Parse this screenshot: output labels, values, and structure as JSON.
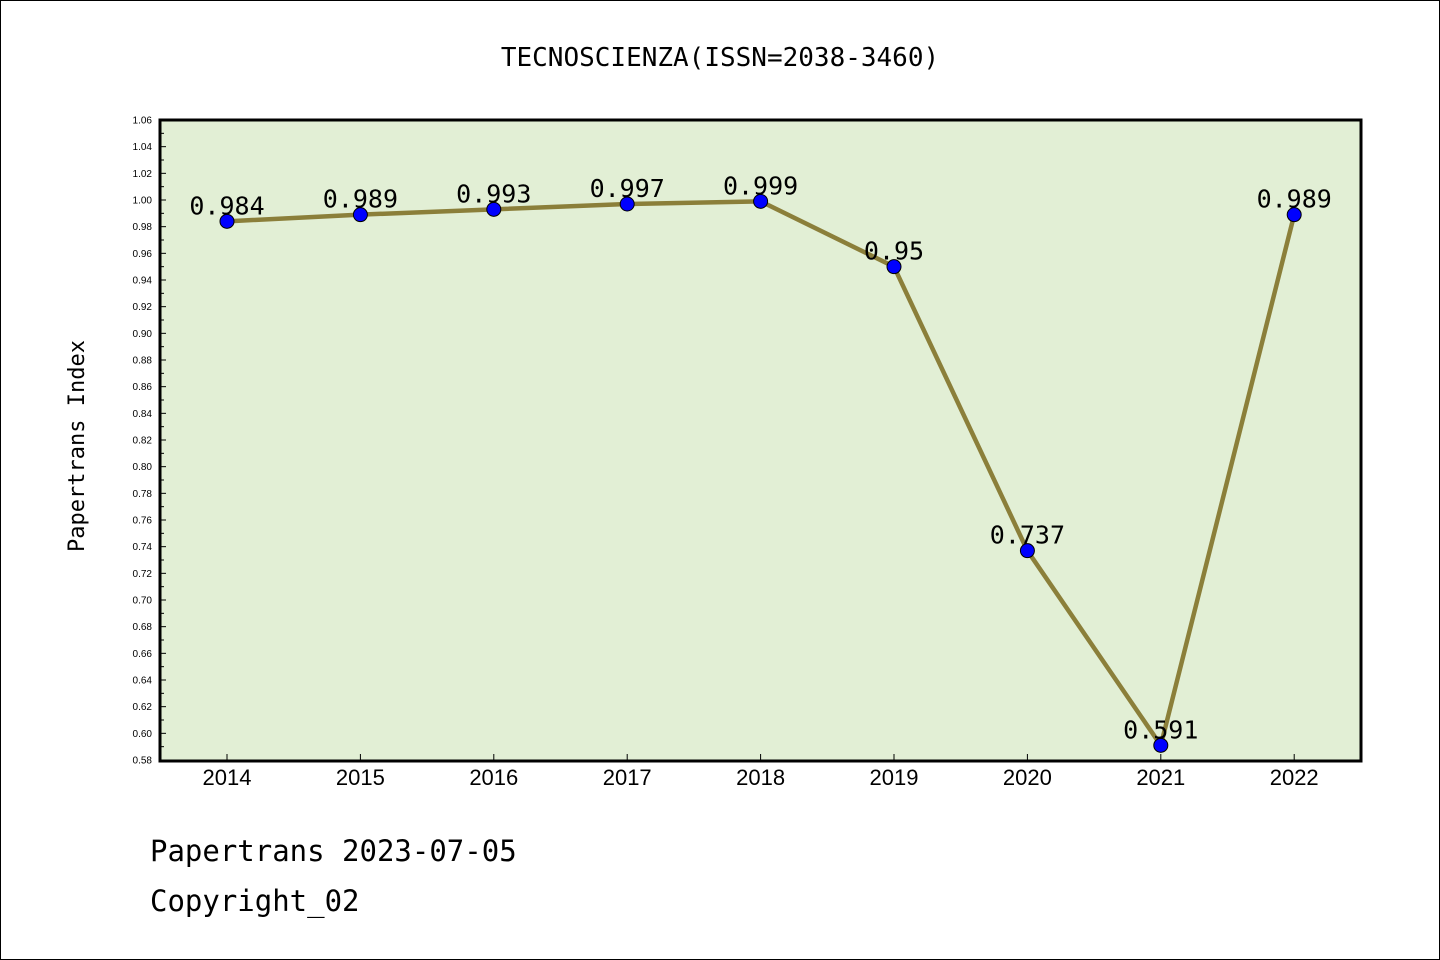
{
  "chart_data": {
    "type": "line",
    "title": "TECNOSCIENZA(ISSN=2038-3460)",
    "xlabel": "",
    "ylabel": "Papertrans Index",
    "categories": [
      "2014",
      "2015",
      "2016",
      "2017",
      "2018",
      "2019",
      "2020",
      "2021",
      "2022"
    ],
    "values": [
      0.984,
      0.989,
      0.993,
      0.997,
      0.999,
      0.95,
      0.737,
      0.591,
      0.989
    ],
    "data_labels": [
      "0.984",
      "0.989",
      "0.993",
      "0.997",
      "0.999",
      "0.95",
      "0.737",
      "0.591",
      "0.989"
    ],
    "ylim": [
      0.58,
      1.06
    ],
    "yticks": [
      "0.58",
      "0.60",
      "0.62",
      "0.64",
      "0.66",
      "0.68",
      "0.70",
      "0.72",
      "0.74",
      "0.76",
      "0.78",
      "0.80",
      "0.82",
      "0.84",
      "0.86",
      "0.88",
      "0.90",
      "0.92",
      "0.94",
      "0.96",
      "0.98",
      "1.00",
      "1.02",
      "1.04",
      "1.06"
    ],
    "grid": false,
    "colors": {
      "plot_background": "#e2efd5",
      "line": "#8b7f3a",
      "marker": "#0000ff"
    }
  },
  "footer": {
    "line1": "Papertrans 2023-07-05",
    "line2": "Copyright_02"
  }
}
